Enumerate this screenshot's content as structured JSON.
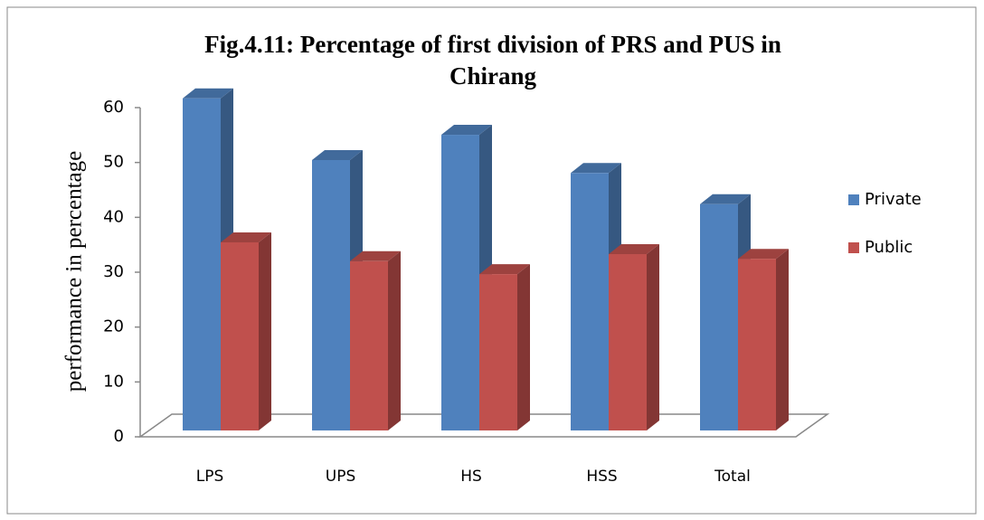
{
  "chart_data": {
    "type": "bar3d",
    "title": [
      "Fig.4.11: Percentage of first division of PRS and PUS in",
      "Chirang"
    ],
    "ylabel": "performance in percentage",
    "categories": [
      "LPS",
      "UPS",
      "HS",
      "HSS",
      "Total"
    ],
    "series": [
      {
        "name": "Private",
        "color": "#4f81bd",
        "values": [
          56.5,
          46.0,
          50.3,
          43.8,
          38.5
        ]
      },
      {
        "name": "Public",
        "color": "#c0504d",
        "values": [
          32.0,
          28.8,
          26.6,
          30.0,
          29.2
        ]
      }
    ],
    "ylim": [
      0,
      60
    ],
    "yticks": [
      0,
      10,
      20,
      30,
      40,
      50,
      60
    ],
    "legend": "right"
  }
}
